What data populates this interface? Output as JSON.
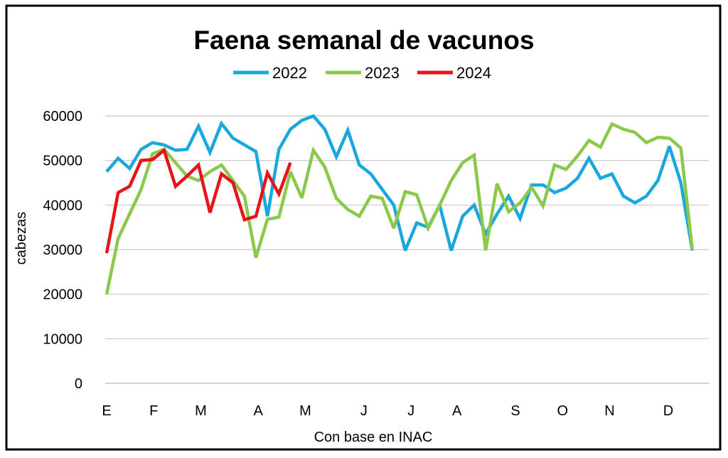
{
  "chart_data": {
    "type": "line",
    "title": "Faena semanal de vacunos",
    "xlabel": "Con base en INAC",
    "ylabel": "cabezas",
    "ylim": [
      0,
      60000
    ],
    "yticks": [
      0,
      10000,
      20000,
      30000,
      40000,
      50000,
      60000
    ],
    "ytick_labels": [
      "0",
      "10000",
      "20000",
      "30000",
      "40000",
      "50000",
      "60000"
    ],
    "xlim_weeks": [
      0,
      52
    ],
    "month_ticks": [
      {
        "label": "E",
        "week": 0
      },
      {
        "label": "F",
        "week": 4.1
      },
      {
        "label": "M",
        "week": 8.2
      },
      {
        "label": "A",
        "week": 13.2
      },
      {
        "label": "M",
        "week": 17.3
      },
      {
        "label": "J",
        "week": 22.4
      },
      {
        "label": "J",
        "week": 26.5
      },
      {
        "label": "A",
        "week": 30.5
      },
      {
        "label": "S",
        "week": 35.6
      },
      {
        "label": "O",
        "week": 39.7
      },
      {
        "label": "N",
        "week": 43.8
      },
      {
        "label": "D",
        "week": 48.9
      }
    ],
    "grid": true,
    "legend_position": "top-center",
    "series": [
      {
        "name": "2022",
        "color": "#1aa7dc",
        "values": [
          47500,
          50500,
          48200,
          52500,
          54000,
          53500,
          52300,
          52500,
          57700,
          51800,
          58300,
          55000,
          53500,
          52000,
          37500,
          52500,
          57000,
          59000,
          60000,
          57000,
          50800,
          56800,
          49000,
          47000,
          43500,
          40000,
          29800,
          36000,
          35000,
          40000,
          29800,
          37500,
          40000,
          33500,
          38000,
          42000,
          37000,
          44500,
          44500,
          42800,
          43800,
          46000,
          50500,
          46000,
          47000,
          42000,
          40500,
          42000,
          45500,
          53200,
          45000,
          29800
        ]
      },
      {
        "name": "2023",
        "color": "#8cc84b",
        "values": [
          20000,
          32500,
          38000,
          43500,
          51500,
          52500,
          49500,
          46500,
          45500,
          47500,
          49000,
          45500,
          42000,
          28200,
          36800,
          37300,
          47500,
          41600,
          52300,
          48500,
          41500,
          39000,
          37500,
          42000,
          41500,
          34800,
          43000,
          42300,
          34800,
          40000,
          45500,
          49500,
          51200,
          29800,
          44800,
          38500,
          40500,
          44000,
          39800,
          49000,
          48000,
          51000,
          54500,
          53000,
          58200,
          57000,
          56300,
          54000,
          55200,
          55000,
          52800,
          30000
        ]
      },
      {
        "name": "2024",
        "color": "#e8141a",
        "values": [
          29200,
          42800,
          44200,
          50000,
          50200,
          52300,
          44200,
          46500,
          49000,
          38300,
          47000,
          45000,
          36700,
          37500,
          47200,
          42500,
          49500
        ]
      }
    ]
  }
}
